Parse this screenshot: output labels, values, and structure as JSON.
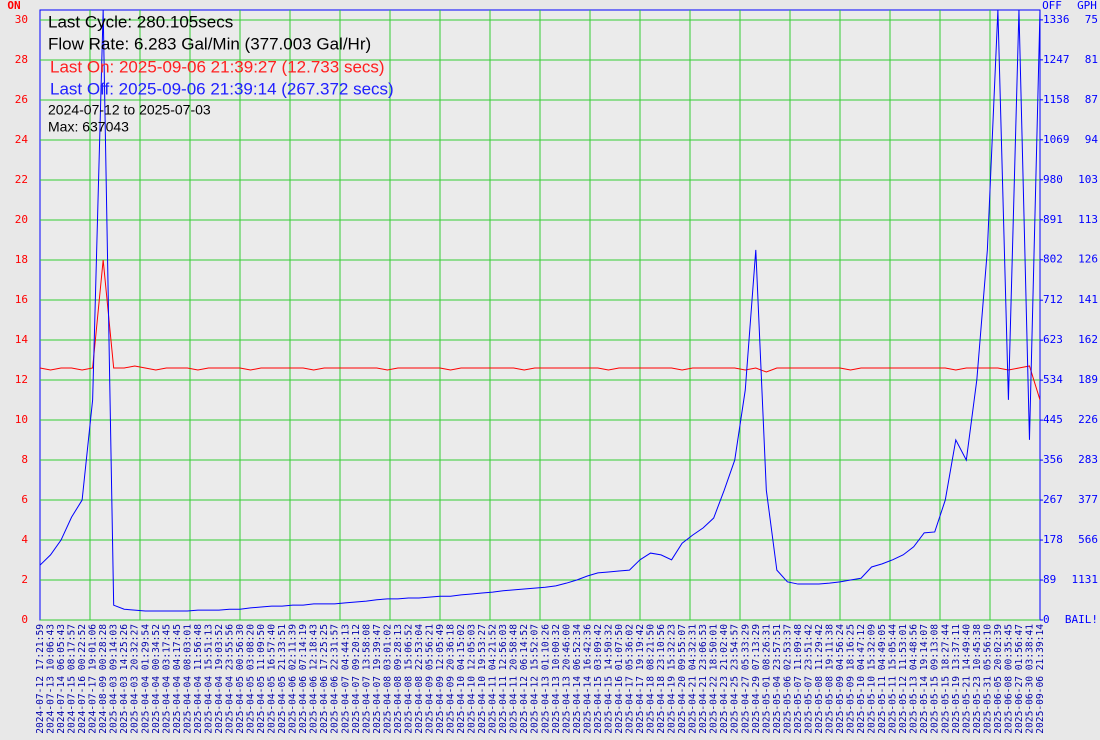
{
  "chart_data": {
    "type": "line",
    "annotations": [
      {
        "text": "Last Cycle: 280.105secs",
        "color": "#000000"
      },
      {
        "text": "Flow Rate: 6.283 Gal/Min (377.003 Gal/Hr)",
        "color": "#000000"
      },
      {
        "text": "Last On: 2025-09-06 21:39:27 (12.733 secs)",
        "color": "#ff2020"
      },
      {
        "text": "Last Off: 2025-09-06 21:39:14 (267.372 secs)",
        "color": "#2020ff"
      },
      {
        "text": "2024-07-12 to 2025-07-03",
        "color": "#000000"
      },
      {
        "text": "Max: 637043",
        "color": "#000000"
      }
    ],
    "gph_axis_label": "GPH",
    "categories": [
      "2024-07-12 17:21:59",
      "2024-07-13 10:06:43",
      "2024-07-14 06:05:43",
      "2024-07-15 08:17:57",
      "2024-07-16 00:22:52",
      "2024-07-17 19:01:06",
      "2024-08-09 00:28:28",
      "2025-04-03 09:14:03",
      "2025-04-03 14:25:26",
      "2025-04-03 20:32:27",
      "2025-04-04 01:29:54",
      "2025-04-04 00:34:52",
      "2025-04-04 03:17:45",
      "2025-04-04 04:17:45",
      "2025-04-04 08:03:01",
      "2025-04-04 11:56:48",
      "2025-04-04 15:51:13",
      "2025-04-04 19:03:52",
      "2025-04-04 23:55:56",
      "2025-04-05 00:56:30",
      "2025-04-05 03:08:20",
      "2025-04-05 11:09:50",
      "2025-04-05 16:57:40",
      "2025-04-05 21:33:51",
      "2025-04-06 02:11:39",
      "2025-04-06 07:14:19",
      "2025-04-06 12:18:43",
      "2025-04-06 17:25:25",
      "2025-04-06 22:31:57",
      "2025-04-07 04:44:13",
      "2025-04-07 09:20:12",
      "2025-04-07 13:58:08",
      "2025-04-07 19:39:47",
      "2025-04-08 03:01:02",
      "2025-04-08 09:28:13",
      "2025-04-08 15:06:52",
      "2025-04-08 22:53:04",
      "2025-04-09 05:56:21",
      "2025-04-09 12:05:49",
      "2025-04-09 20:36:18",
      "2025-04-10 04:15:02",
      "2025-04-10 12:05:03",
      "2025-04-10 19:53:27",
      "2025-04-11 04:21:52",
      "2025-04-11 12:56:03",
      "2025-04-11 20:58:48",
      "2025-04-12 06:14:52",
      "2025-04-12 15:52:07",
      "2025-04-13 01:10:26",
      "2025-04-13 10:00:32",
      "2025-04-13 20:46:00",
      "2025-04-14 06:52:34",
      "2025-04-14 16:42:36",
      "2025-04-15 03:09:42",
      "2025-04-15 14:50:32",
      "2025-04-16 01:07:50",
      "2025-04-17 05:36:02",
      "2025-04-17 19:19:42",
      "2025-04-18 08:21:50",
      "2025-04-18 23:10:56",
      "2025-04-19 15:32:23",
      "2025-04-20 09:55:07",
      "2025-04-21 04:32:31",
      "2025-04-21 23:06:53",
      "2025-04-22 18:50:01",
      "2025-04-23 21:02:40",
      "2025-04-25 23:54:57",
      "2025-04-27 05:33:29",
      "2025-04-29 07:13:29",
      "2025-05-01 08:26:31",
      "2025-05-04 23:57:51",
      "2025-05-06 02:53:37",
      "2025-05-07 11:09:48",
      "2025-05-07 23:51:42",
      "2025-05-08 11:29:42",
      "2025-05-08 19:11:38",
      "2025-05-09 04:56:24",
      "2025-05-09 18:16:25",
      "2025-05-10 04:47:12",
      "2025-05-10 15:32:09",
      "2025-05-11 04:49:05",
      "2025-05-11 15:05:44",
      "2025-05-12 11:53:01",
      "2025-05-13 04:48:56",
      "2025-05-14 19:14:07",
      "2025-05-15 09:13:08",
      "2025-05-15 18:27:44",
      "2025-05-19 13:37:11",
      "2025-05-21 14:49:40",
      "2025-05-23 10:45:38",
      "2025-05-31 05:56:10",
      "2025-06-05 20:02:39",
      "2025-06-08 00:35:45",
      "2025-06-27 01:56:47",
      "2025-06-30 03:38:41",
      "2025-09-06 21:39:14"
    ],
    "series": [
      {
        "name": "ON",
        "color": "#ff0000",
        "values": [
          12.6,
          12.5,
          12.6,
          12.6,
          12.5,
          12.6,
          18,
          12.6,
          12.6,
          12.7,
          12.6,
          12.5,
          12.6,
          12.6,
          12.6,
          12.5,
          12.6,
          12.6,
          12.6,
          12.6,
          12.5,
          12.6,
          12.6,
          12.6,
          12.6,
          12.6,
          12.5,
          12.6,
          12.6,
          12.6,
          12.6,
          12.6,
          12.6,
          12.5,
          12.6,
          12.6,
          12.6,
          12.6,
          12.6,
          12.5,
          12.6,
          12.6,
          12.6,
          12.6,
          12.6,
          12.6,
          12.5,
          12.6,
          12.6,
          12.6,
          12.6,
          12.6,
          12.6,
          12.6,
          12.5,
          12.6,
          12.6,
          12.6,
          12.6,
          12.6,
          12.6,
          12.5,
          12.6,
          12.6,
          12.6,
          12.6,
          12.6,
          12.5,
          12.6,
          12.4,
          12.6,
          12.6,
          12.6,
          12.6,
          12.6,
          12.6,
          12.6,
          12.5,
          12.6,
          12.6,
          12.6,
          12.6,
          12.6,
          12.6,
          12.6,
          12.6,
          12.6,
          12.5,
          12.6,
          12.6,
          12.6,
          12.6,
          12.5,
          12.6,
          12.7,
          11
        ]
      },
      {
        "name": "OFF",
        "color": "#0000ff",
        "axis": "y2",
        "values": [
          122,
          145,
          178,
          229,
          267,
          490,
          1358,
          33,
          24,
          22,
          20,
          20,
          20,
          20,
          20,
          22,
          22,
          22,
          24,
          24,
          27,
          29,
          31,
          31,
          33,
          33,
          36,
          36,
          36,
          38,
          40,
          42,
          45,
          47,
          47,
          49,
          49,
          51,
          53,
          53,
          56,
          58,
          60,
          62,
          65,
          67,
          69,
          71,
          73,
          76,
          82,
          89,
          98,
          105,
          107,
          109,
          111,
          134,
          149,
          145,
          134,
          171,
          189,
          205,
          227,
          289,
          356,
          512,
          824,
          289,
          111,
          85,
          80,
          80,
          80,
          82,
          85,
          89,
          93,
          118,
          125,
          134,
          145,
          163,
          194,
          196,
          267,
          401,
          356,
          535,
          824,
          1358,
          490,
          1358,
          401,
          1358
        ]
      }
    ],
    "ylim": [
      0,
      30.5
    ],
    "yticks": [
      0,
      2,
      4,
      6,
      8,
      10,
      12,
      14,
      16,
      18,
      20,
      22,
      24,
      26,
      28,
      30
    ],
    "y2lim": [
      0,
      1358
    ],
    "y2ticks": [
      0,
      89,
      178,
      267,
      356,
      445,
      534,
      623,
      712,
      802,
      891,
      980,
      1069,
      1158,
      1247,
      1336
    ],
    "gph_ticks": [
      "BAIL!",
      1131,
      566,
      377,
      283,
      226,
      189,
      162,
      141,
      126,
      113,
      103,
      94,
      87,
      81,
      75
    ],
    "grid": true
  }
}
